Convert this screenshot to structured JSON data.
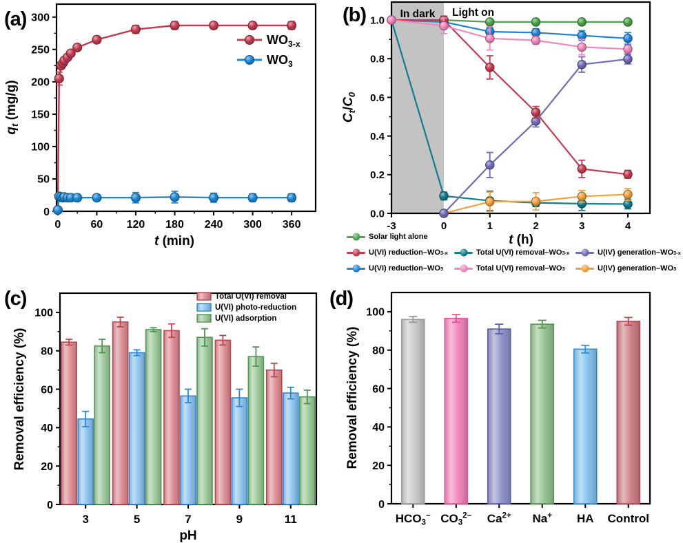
{
  "panels": {
    "a": {
      "label": "(a)"
    },
    "b": {
      "label": "(b)"
    },
    "c": {
      "label": "(c)"
    },
    "d": {
      "label": "(d)"
    }
  },
  "chart_data": [
    {
      "id": "a",
      "type": "line",
      "xlabel": [
        {
          "t": "t",
          "i": 1
        },
        {
          "t": " (min)"
        }
      ],
      "ylabel": [
        {
          "t": "q",
          "i": 1
        },
        {
          "t": "t",
          "i": 1,
          "sub": 1
        },
        {
          "t": " (mg/g)"
        }
      ],
      "xlim": [
        -2,
        397
      ],
      "ylim": [
        0,
        320
      ],
      "xticks": [
        0,
        60,
        120,
        180,
        240,
        300,
        360
      ],
      "yticks": [
        0,
        50,
        100,
        150,
        200,
        250,
        300
      ],
      "minor_ticks": true,
      "x": [
        0,
        2,
        5,
        8,
        10,
        15,
        20,
        30,
        60,
        120,
        180,
        240,
        300,
        360
      ],
      "series": [
        {
          "name": [
            {
              "t": "WO"
            },
            {
              "t": "3-x",
              "sub": 1
            }
          ],
          "color": "#c23b50",
          "values": [
            2,
            205,
            225,
            229,
            233,
            238,
            244,
            253,
            265,
            281,
            287,
            287,
            287,
            287
          ],
          "err": [
            0,
            10,
            5,
            4,
            4,
            4,
            4,
            4,
            5,
            6,
            6,
            5,
            5,
            6
          ]
        },
        {
          "name": [
            {
              "t": "WO"
            },
            {
              "t": "3",
              "sub": 1
            }
          ],
          "color": "#1d87d4",
          "values": [
            2,
            23,
            22,
            21,
            22,
            21,
            21,
            21,
            21,
            21,
            22,
            21,
            21,
            21
          ],
          "err": [
            1,
            3,
            6,
            6,
            5,
            6,
            5,
            4,
            4,
            8,
            9,
            7,
            6,
            6
          ]
        }
      ]
    },
    {
      "id": "b",
      "type": "line",
      "ylabel": [
        {
          "t": "C",
          "i": 1
        },
        {
          "t": "t",
          "i": 1,
          "sub": 1
        },
        {
          "t": "/"
        },
        {
          "t": "C",
          "i": 1
        },
        {
          "t": "0",
          "i": 1,
          "sub": 1
        }
      ],
      "ylim": [
        0,
        1.093
      ],
      "ytick_decimals": 1,
      "xticks": [
        -3,
        0,
        1,
        2,
        3,
        4
      ],
      "yticks": [
        0.0,
        0.2,
        0.4,
        0.6,
        0.8,
        1.0
      ],
      "minor_ticks": true,
      "dark_region": {
        "from": -3,
        "to": 0,
        "color": "#c3c3c3",
        "label": "In dark"
      },
      "light_label": "Light on",
      "x": [
        -3,
        0,
        1,
        2,
        3,
        4
      ],
      "series": [
        {
          "name": [
            {
              "t": "Solar light alone"
            }
          ],
          "color": "#4ba449",
          "values": [
            1.0,
            1.0,
            0.99,
            0.99,
            0.99,
            0.99
          ],
          "err": [
            0,
            0.01,
            0.012,
            0.012,
            0.012,
            0.015
          ]
        },
        {
          "name": [
            {
              "t": "Total U(VI) removal–WO"
            },
            {
              "t": "3-x",
              "sub": 1
            }
          ],
          "color": "#107c8d",
          "values": [
            1.0,
            0.09,
            0.065,
            0.055,
            0.05,
            0.048
          ],
          "err": [
            0,
            0.02,
            0.05,
            0.02,
            0.035,
            0.025
          ]
        },
        {
          "name": [
            {
              "t": "U(IV) generation–WO"
            },
            {
              "t": "3",
              "sub": 1
            }
          ],
          "color": "#f0a23f",
          "values": [
            null,
            0.0,
            0.06,
            0.062,
            0.088,
            0.098
          ],
          "err": [
            0,
            0,
            0.05,
            0.045,
            0.03,
            0.03
          ]
        },
        {
          "name": [
            {
              "t": "U(IV) generation–WO"
            },
            {
              "t": "3-x",
              "sub": 1
            }
          ],
          "color": "#6e6cb8",
          "values": [
            null,
            0.0,
            0.25,
            0.477,
            0.77,
            0.798
          ],
          "err": [
            0,
            0,
            0.065,
            0.03,
            0.04,
            0.025
          ]
        },
        {
          "name": [
            {
              "t": "U(VI) reduction–WO"
            },
            {
              "t": "3",
              "sub": 1
            }
          ],
          "color": "#1f86d6",
          "values": [
            1.0,
            0.99,
            0.94,
            0.935,
            0.92,
            0.905
          ],
          "err": [
            0,
            0.01,
            0.02,
            0.02,
            0.025,
            0.03
          ]
        },
        {
          "name": [
            {
              "t": "U(VI) reduction–WO"
            },
            {
              "t": "3-x",
              "sub": 1
            }
          ],
          "color": "#c43a4e",
          "values": [
            1.0,
            1.0,
            0.755,
            0.523,
            0.23,
            0.202
          ],
          "err": [
            0,
            0.02,
            0.06,
            0.03,
            0.045,
            0.02
          ]
        },
        {
          "name": [
            {
              "t": "Total U(VI) removal–WO"
            },
            {
              "t": "3",
              "sub": 1
            }
          ],
          "color": "#f288bf",
          "values": [
            1.0,
            0.97,
            0.905,
            0.895,
            0.86,
            0.85
          ],
          "err": [
            0,
            0.04,
            0.06,
            0.02,
            0.04,
            0.02
          ]
        }
      ]
    },
    {
      "id": "c",
      "type": "bar",
      "xlabel": [
        {
          "t": "pH"
        }
      ],
      "ylabel": [
        {
          "t": "Removal efficiency (%)"
        }
      ],
      "ylim": [
        0,
        110
      ],
      "yticks": [
        0,
        20,
        40,
        60,
        80,
        100
      ],
      "minor_ticks": true,
      "categories": [
        [
          {
            "t": "3"
          }
        ],
        [
          {
            "t": "5"
          }
        ],
        [
          {
            "t": "7"
          }
        ],
        [
          {
            "t": "9"
          }
        ],
        [
          {
            "t": "11"
          }
        ]
      ],
      "series": [
        {
          "name": [
            {
              "t": "Total U(VI) removal"
            }
          ],
          "fill": "#dd8e94",
          "border": "#bc4550",
          "values": [
            84.5,
            95,
            90.5,
            85.5,
            70
          ],
          "err": [
            1.5,
            2.5,
            3.5,
            2.5,
            3.5
          ]
        },
        {
          "name": [
            {
              "t": "U(VI) photo-reduction"
            }
          ],
          "fill": "#8ec4f0",
          "border": "#2f86d2",
          "values": [
            44.5,
            79,
            56.5,
            55.5,
            58
          ],
          "err": [
            4,
            1.5,
            3.5,
            4.5,
            3
          ]
        },
        {
          "name": [
            {
              "t": "U(VI) adsorption"
            }
          ],
          "fill": "#9ecb9b",
          "border": "#4f9454",
          "values": [
            82.5,
            91,
            87,
            77,
            56
          ],
          "err": [
            3.5,
            1,
            4.5,
            5,
            3.5
          ]
        }
      ]
    },
    {
      "id": "d",
      "type": "bar",
      "ylabel": [
        {
          "t": "Removal efficiency (%)"
        }
      ],
      "ylim": [
        0,
        110
      ],
      "yticks": [
        0,
        20,
        40,
        60,
        80,
        100
      ],
      "minor_ticks": true,
      "categories": [
        [
          {
            "t": "HCO"
          },
          {
            "t": "3",
            "sub": 1
          },
          {
            "t": "−",
            "sup": 1
          }
        ],
        [
          {
            "t": "CO"
          },
          {
            "t": "3",
            "sub": 1
          },
          {
            "t": "2−",
            "sup": 1
          }
        ],
        [
          {
            "t": "Ca"
          },
          {
            "t": "2+",
            "sup": 1
          }
        ],
        [
          {
            "t": "Na"
          },
          {
            "t": "+",
            "sup": 1
          }
        ],
        [
          {
            "t": "HA"
          }
        ],
        [
          {
            "t": "Control"
          }
        ]
      ],
      "bars": {
        "values": [
          96,
          96.5,
          91,
          93.5,
          80.5,
          95
        ],
        "err": [
          1.5,
          2,
          2.5,
          2,
          2,
          2
        ],
        "fills": [
          "#c9c9c9",
          "#f287bb",
          "#9095c9",
          "#95c493",
          "#85c4ef",
          "#cf8186"
        ],
        "borders": [
          "#9a9a9a",
          "#e0569d",
          "#5a60a8",
          "#55954f",
          "#2e8fd4",
          "#b2454f"
        ]
      }
    }
  ],
  "legend_b": {
    "xlabel": [
      {
        "t": "t",
        "i": 1
      },
      {
        "t": " (h)"
      }
    ],
    "rows": [
      [
        0
      ],
      [
        5,
        1,
        3
      ],
      [
        4,
        6,
        2
      ]
    ]
  }
}
